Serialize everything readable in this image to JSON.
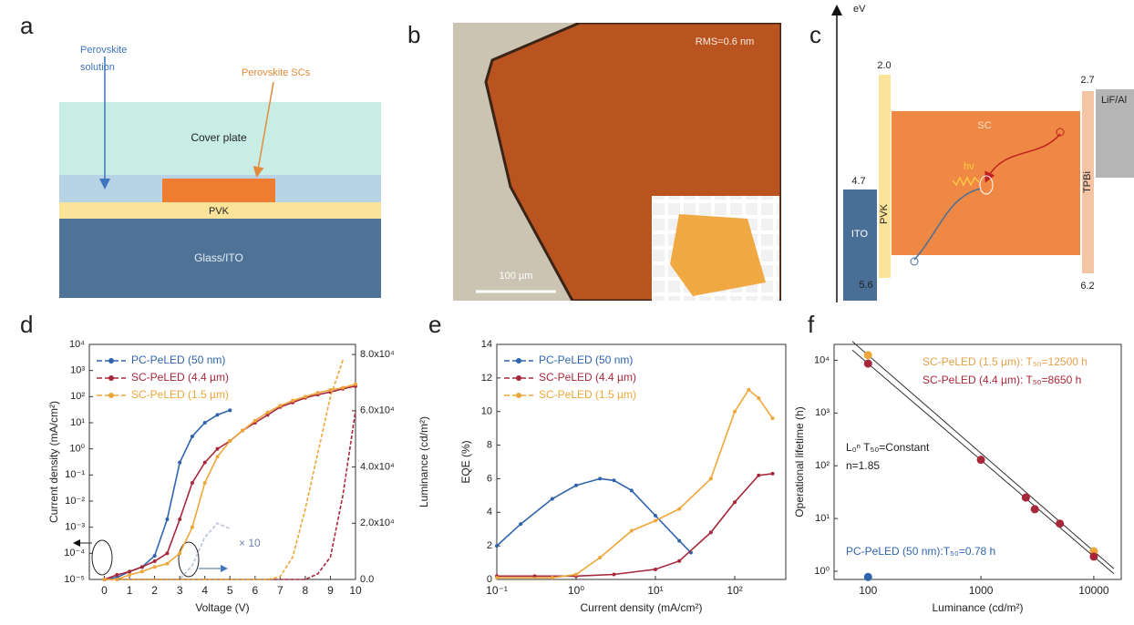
{
  "panels": {
    "a": {
      "label": "a",
      "solution": [
        "Perovskite",
        "solution"
      ],
      "crystals": "Perovskite SCs",
      "cover": "Cover plate",
      "pvk": "PVK",
      "substrate": "Glass/ITO"
    },
    "b": {
      "label": "b",
      "rms": "RMS=0.6 nm",
      "scale": "100 µm"
    },
    "c": {
      "label": "c",
      "unit": "eV",
      "levels": [
        "2.0",
        "4.7",
        "5.6",
        "2.7",
        "6.2"
      ],
      "layers": [
        "ITO",
        "PVK",
        "SC",
        "TPBi",
        "LiF/Al"
      ],
      "photon": "hν"
    }
  },
  "chart_data": [
    {
      "type": "line",
      "panel_label": "d",
      "xlabel": "Voltage (V)",
      "ylabel": "Current density (mA/cm²)",
      "y2label": "Luminance (cd/m²)",
      "xlim": [
        -0.6,
        10
      ],
      "xticks": [
        0,
        1,
        2,
        3,
        4,
        5,
        6,
        7,
        8,
        9,
        10
      ],
      "ylim": [
        1e-05,
        10000
      ],
      "yscale": "log",
      "yticks": [
        {
          "value": 1e-05,
          "label": "10⁻⁵"
        },
        {
          "value": 0.0001,
          "label": "10⁻⁴"
        },
        {
          "value": 0.001,
          "label": "10⁻³"
        },
        {
          "value": 0.01,
          "label": "10⁻²"
        },
        {
          "value": 0.1,
          "label": "10⁻¹"
        },
        {
          "value": 1,
          "label": "10⁰"
        },
        {
          "value": 10,
          "label": "10¹"
        },
        {
          "value": 100,
          "label": "10²"
        },
        {
          "value": 1000,
          "label": "10³"
        },
        {
          "value": 10000,
          "label": "10⁴"
        }
      ],
      "y2lim": [
        0,
        83600
      ],
      "y2ticks": [
        {
          "value": 0,
          "label": "0.0"
        },
        {
          "value": 20000,
          "label": "2.0x10⁴"
        },
        {
          "value": 40000,
          "label": "4.0x10⁴"
        },
        {
          "value": 60000,
          "label": "6.0x10⁴"
        },
        {
          "value": 80000,
          "label": "8.0x10⁴"
        }
      ],
      "x": [
        0,
        0.5,
        1,
        1.5,
        2,
        2.5,
        3,
        3.5,
        4,
        4.5,
        5,
        5.5,
        6,
        6.5,
        7,
        7.5,
        8,
        8.5,
        9,
        9.5,
        10
      ],
      "series": [
        {
          "name": "PC-PeLED (50 nm)",
          "color": "#2f64ad",
          "values": [
            1e-05,
            1.2e-05,
            2e-05,
            3e-05,
            8e-05,
            0.002,
            0.3,
            3,
            10,
            20,
            30,
            null,
            null,
            null,
            null,
            null,
            null,
            null,
            null,
            null,
            null
          ]
        },
        {
          "name": "SC-PeLED (4.4 µm)",
          "color": "#a8283b",
          "values": [
            1e-05,
            1.5e-05,
            2e-05,
            3e-05,
            5e-05,
            0.0001,
            0.002,
            0.05,
            0.3,
            1,
            2,
            5,
            10,
            20,
            40,
            60,
            90,
            120,
            150,
            200,
            250
          ]
        },
        {
          "name": "SC-PeLED (1.5 µm)",
          "color": "#eea63a",
          "values": [
            1e-05,
            1e-05,
            1.5e-05,
            2e-05,
            3e-05,
            4e-05,
            0.0001,
            0.001,
            0.05,
            0.5,
            2,
            5,
            12,
            25,
            45,
            70,
            100,
            140,
            180,
            220,
            300
          ]
        },
        {
          "axis": "y2",
          "dashed": true,
          "color": "#b9c4d6",
          "values": [
            0,
            0,
            0,
            0,
            0,
            0,
            0,
            5000,
            15000,
            20000,
            18000,
            null,
            null,
            null,
            null,
            null,
            null,
            null,
            null,
            null,
            null
          ]
        },
        {
          "axis": "y2",
          "dashed": true,
          "color": "#a8283b",
          "values": [
            0,
            0,
            0,
            0,
            0,
            0,
            0,
            0,
            0,
            0,
            0,
            0,
            0,
            0,
            0,
            0,
            0,
            2000,
            8000,
            30000,
            60000
          ]
        },
        {
          "axis": "y2",
          "dashed": true,
          "color": "#eea63a",
          "values": [
            0,
            0,
            0,
            0,
            0,
            0,
            0,
            0,
            0,
            0,
            0,
            0,
            0,
            0,
            1000,
            8000,
            25000,
            45000,
            65000,
            78000,
            null
          ]
        }
      ],
      "annotations": [
        {
          "text": "× 10",
          "color": "#6f86b0"
        }
      ]
    },
    {
      "type": "line",
      "panel_label": "e",
      "xlabel": "Current density (mA/cm²)",
      "ylabel": "EQE (%)",
      "xlim": [
        0.1,
        440
      ],
      "xscale": "log",
      "xticks": [
        {
          "value": 0.1,
          "label": "10⁻¹"
        },
        {
          "value": 1,
          "label": "10⁰"
        },
        {
          "value": 10,
          "label": "10¹"
        },
        {
          "value": 100,
          "label": "10²"
        }
      ],
      "ylim": [
        0,
        14
      ],
      "yticks": [
        0,
        2,
        4,
        6,
        8,
        10,
        12,
        14
      ],
      "series": [
        {
          "name": "PC-PeLED (50 nm)",
          "color": "#2f64ad",
          "x": [
            0.1,
            0.2,
            0.5,
            1,
            2,
            3,
            5,
            10,
            20,
            28
          ],
          "values": [
            2.0,
            3.3,
            4.8,
            5.6,
            6.0,
            5.9,
            5.3,
            3.8,
            2.3,
            1.6
          ]
        },
        {
          "name": "SC-PeLED (4.4 µm)",
          "color": "#a8283b",
          "x": [
            0.1,
            0.3,
            1,
            3,
            10,
            20,
            50,
            100,
            200,
            300
          ],
          "values": [
            0.2,
            0.2,
            0.2,
            0.3,
            0.6,
            1.1,
            2.8,
            4.6,
            6.2,
            6.3
          ]
        },
        {
          "name": "SC-PeLED (1.5 µm)",
          "color": "#eea63a",
          "x": [
            0.1,
            0.5,
            1,
            2,
            5,
            10,
            20,
            50,
            100,
            150,
            200,
            300
          ],
          "values": [
            0.1,
            0.1,
            0.3,
            1.3,
            2.9,
            3.5,
            4.2,
            6.0,
            10.0,
            11.3,
            10.8,
            9.6
          ]
        }
      ]
    },
    {
      "type": "scatter",
      "panel_label": "f",
      "xlabel": "Luminance (cd/m²)",
      "ylabel": "Operational lifetime (h)",
      "xlim": [
        50,
        17500
      ],
      "xscale": "log",
      "xticks": [
        100,
        1000,
        10000
      ],
      "ylim": [
        0.7,
        20000
      ],
      "yscale": "log",
      "yticks": [
        {
          "value": 1,
          "label": "10⁰"
        },
        {
          "value": 10,
          "label": "10¹"
        },
        {
          "value": 100,
          "label": "10²"
        },
        {
          "value": 1000,
          "label": "10³"
        },
        {
          "value": 10000,
          "label": "10⁴"
        }
      ],
      "series": [
        {
          "color": "#eea63a",
          "fit": true,
          "x": [
            100,
            10000
          ],
          "values": [
            12500,
            2.4
          ]
        },
        {
          "color": "#a8283b",
          "fit": true,
          "x": [
            100,
            1000,
            2500,
            3000,
            5000,
            10000
          ],
          "values": [
            8650,
            130,
            25,
            15,
            8,
            1.9
          ]
        },
        {
          "color": "#2f64ad",
          "x": [
            100
          ],
          "values": [
            0.78
          ]
        }
      ],
      "annotations": [
        {
          "text": "SC-PeLED (1.5 µm): T₅₀=12500 h",
          "color": "#e6a04a"
        },
        {
          "text": "SC-PeLED (4.4 µm): T₅₀=8650 h",
          "color": "#a8283b"
        },
        {
          "text": "L₀ⁿ T₅₀=Constant",
          "color": "#222222"
        },
        {
          "text": "n=1.85",
          "color": "#222222"
        },
        {
          "text": "PC-PeLED (50 nm):T₅₀=0.78 h",
          "color": "#2f64ad"
        }
      ]
    }
  ]
}
